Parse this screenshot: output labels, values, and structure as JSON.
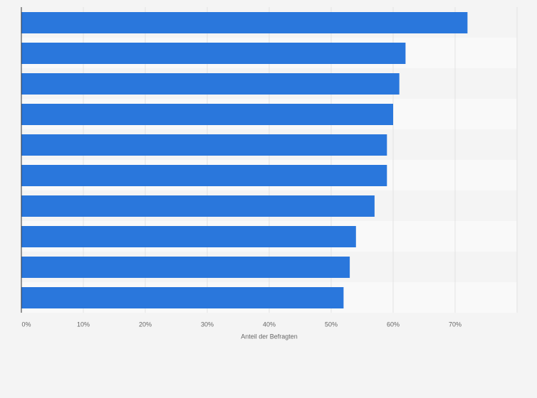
{
  "chart_data": {
    "type": "barh",
    "x_label": "Anteil der Befragten",
    "categories": [
      null,
      null,
      null,
      null,
      null,
      null,
      null,
      null,
      null,
      null
    ],
    "values": [
      72,
      62,
      61,
      60,
      59,
      59,
      57,
      54,
      53,
      52
    ],
    "color": "#2a77dc",
    "xlim": [
      0,
      80
    ],
    "xticks": [
      {
        "value": 0,
        "label": "0%"
      },
      {
        "value": 10,
        "label": "10%"
      },
      {
        "value": 20,
        "label": "20%"
      },
      {
        "value": 30,
        "label": "30%"
      },
      {
        "value": 40,
        "label": "40%"
      },
      {
        "value": 50,
        "label": "50%"
      },
      {
        "value": 60,
        "label": "60%"
      },
      {
        "value": 70,
        "label": "70%"
      }
    ],
    "grid": true
  }
}
